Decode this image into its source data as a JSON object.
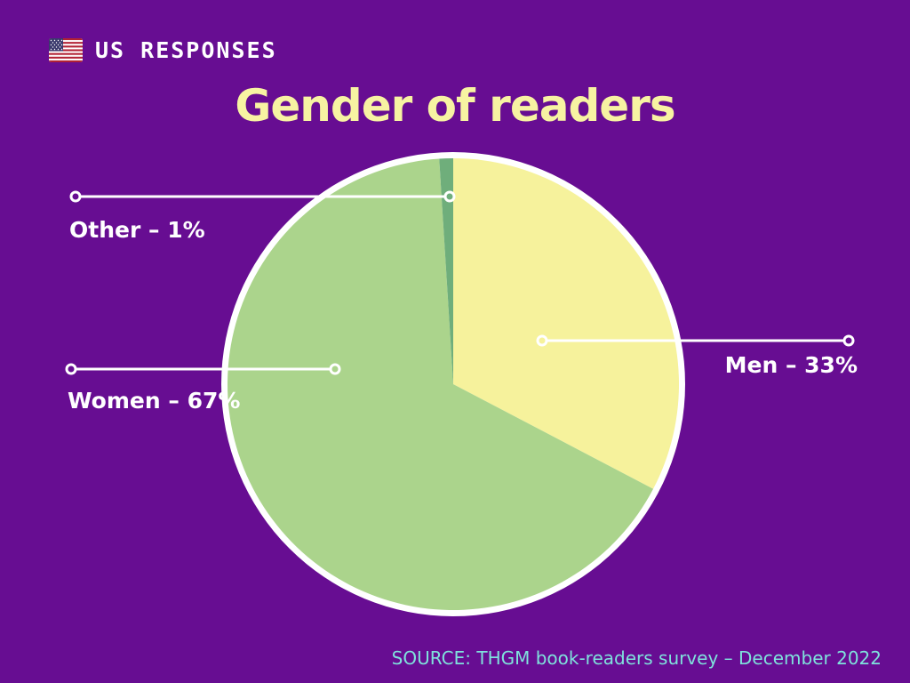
{
  "header": {
    "brand": "US RESPONSES",
    "flag_icon": "us-flag-icon"
  },
  "title": "Gender of readers",
  "source": "SOURCE: THGM book-readers survey – December 2022",
  "colors": {
    "background": "#670D92",
    "title_text": "#F7F3A2",
    "label_text": "#FFFFFF",
    "source_text": "#7FE2DC",
    "pie_border": "#FFFFFF",
    "leader_line": "#FFFFFF"
  },
  "chart_data": {
    "type": "pie",
    "title": "Gender of readers",
    "categories": [
      "Men",
      "Women",
      "Other"
    ],
    "values": [
      33,
      67,
      1
    ],
    "unit": "percent",
    "colors": [
      "#F6F29C",
      "#ABD48C",
      "#6FAE7B"
    ],
    "start_angle_deg": 0,
    "direction": "clockwise",
    "legend": "none",
    "callouts": [
      {
        "category": "Men",
        "text": "Men – 33%"
      },
      {
        "category": "Women",
        "text": "Women – 67%"
      },
      {
        "category": "Other",
        "text": "Other – 1%"
      }
    ]
  }
}
